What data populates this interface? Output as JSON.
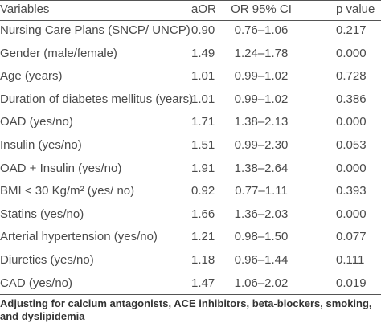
{
  "table": {
    "header": [
      "Variables",
      "aOR",
      "OR 95% CI",
      "p value"
    ],
    "rows": [
      [
        "Nursing Care Plans (SNCP/ UNCP)",
        "0.90",
        "0.76–1.06",
        "0.217"
      ],
      [
        "Gender (male/female)",
        "1.49",
        "1.24–1.78",
        "0.000"
      ],
      [
        "Age (years)",
        "1.01",
        "0.99–1.02",
        "0.728"
      ],
      [
        "Duration of diabetes mellitus (years)",
        "1.01",
        "0.99–1.02",
        "0.386"
      ],
      [
        "OAD (yes/no)",
        "1.71",
        "1.38–2.13",
        "0.000"
      ],
      [
        "Insulin (yes/no)",
        "1.51",
        "0.99–2.30",
        "0.053"
      ],
      [
        "OAD + Insulin (yes/no)",
        "1.91",
        "1.38–2.64",
        "0.000"
      ],
      [
        "BMI < 30 Kg/m² (yes/ no)",
        "0.92",
        "0.77–1.11",
        "0.393"
      ],
      [
        "Statins (yes/no)",
        "1.66",
        "1.36–2.03",
        "0.000"
      ],
      [
        "Arterial hypertension (yes/no)",
        "1.21",
        "0.98–1.50",
        "0.077"
      ],
      [
        "Diuretics (yes/no)",
        "1.18",
        "0.96–1.44",
        "0.111"
      ],
      [
        "CAD (yes/no)",
        "1.47",
        "1.06–2.02",
        "0.019"
      ]
    ],
    "footnote": "Adjusting for calcium antagonists, ACE inhibitors, beta-blockers, smoking, and dyslipidemia"
  }
}
